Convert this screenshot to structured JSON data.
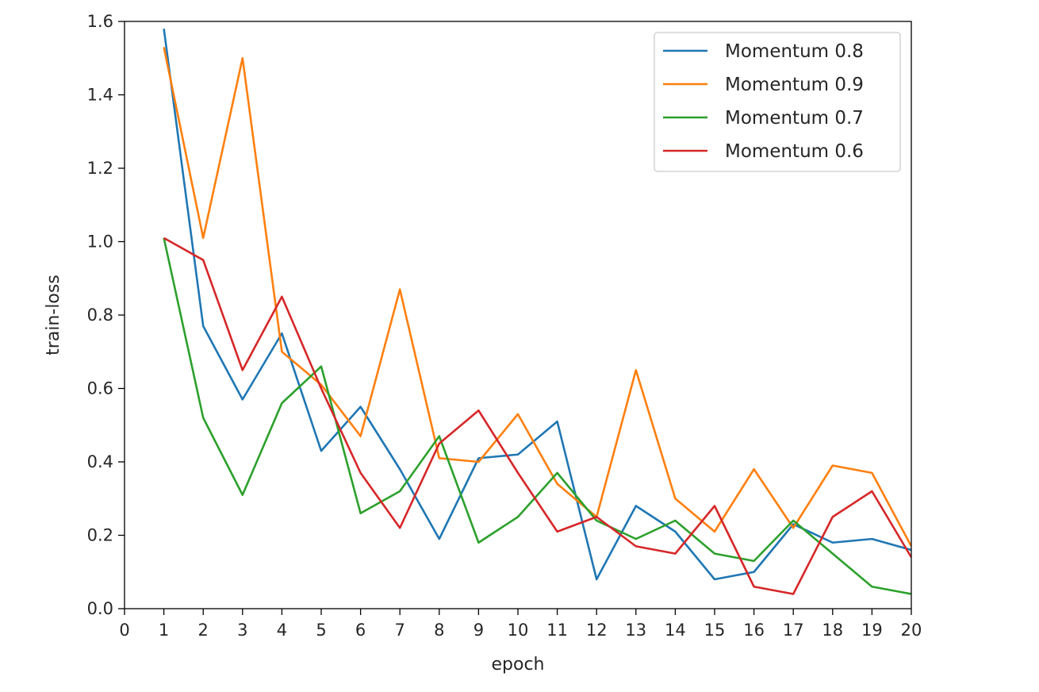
{
  "chart_data": {
    "type": "line",
    "title": "",
    "xlabel": "epoch",
    "ylabel": "train-loss",
    "xlim": [
      0,
      20
    ],
    "ylim": [
      0,
      1.6
    ],
    "xticks": [
      0,
      1,
      2,
      3,
      4,
      5,
      6,
      7,
      8,
      9,
      10,
      11,
      12,
      13,
      14,
      15,
      16,
      17,
      18,
      19,
      20
    ],
    "yticks": [
      "0.0",
      "0.2",
      "0.4",
      "0.6",
      "0.8",
      "1.0",
      "1.2",
      "1.4",
      "1.6"
    ],
    "grid": false,
    "legend": "top-right",
    "x": [
      1,
      2,
      3,
      4,
      5,
      6,
      7,
      8,
      9,
      10,
      11,
      12,
      13,
      14,
      15,
      16,
      17,
      18,
      19,
      20
    ],
    "series": [
      {
        "name": "Momentum 0.8",
        "color": "#1f77b4",
        "values": [
          1.58,
          0.77,
          0.57,
          0.75,
          0.43,
          0.55,
          0.38,
          0.19,
          0.41,
          0.42,
          0.51,
          0.08,
          0.28,
          0.21,
          0.08,
          0.1,
          0.23,
          0.18,
          0.19,
          0.16
        ]
      },
      {
        "name": "Momentum 0.9",
        "color": "#ff7f0e",
        "values": [
          1.53,
          1.01,
          1.5,
          0.7,
          0.61,
          0.47,
          0.87,
          0.41,
          0.4,
          0.53,
          0.34,
          0.25,
          0.65,
          0.3,
          0.21,
          0.38,
          0.22,
          0.39,
          0.37,
          0.17
        ]
      },
      {
        "name": "Momentum 0.7",
        "color": "#2ca02c",
        "values": [
          1.01,
          0.52,
          0.31,
          0.56,
          0.66,
          0.26,
          0.32,
          0.47,
          0.18,
          0.25,
          0.37,
          0.24,
          0.19,
          0.24,
          0.15,
          0.13,
          0.24,
          0.15,
          0.06,
          0.04
        ]
      },
      {
        "name": "Momentum 0.6",
        "color": "#d62728",
        "values": [
          1.01,
          0.95,
          0.65,
          0.85,
          0.6,
          0.37,
          0.22,
          0.45,
          0.54,
          0.37,
          0.21,
          0.25,
          0.17,
          0.15,
          0.28,
          0.06,
          0.04,
          0.25,
          0.32,
          0.14
        ]
      }
    ]
  }
}
